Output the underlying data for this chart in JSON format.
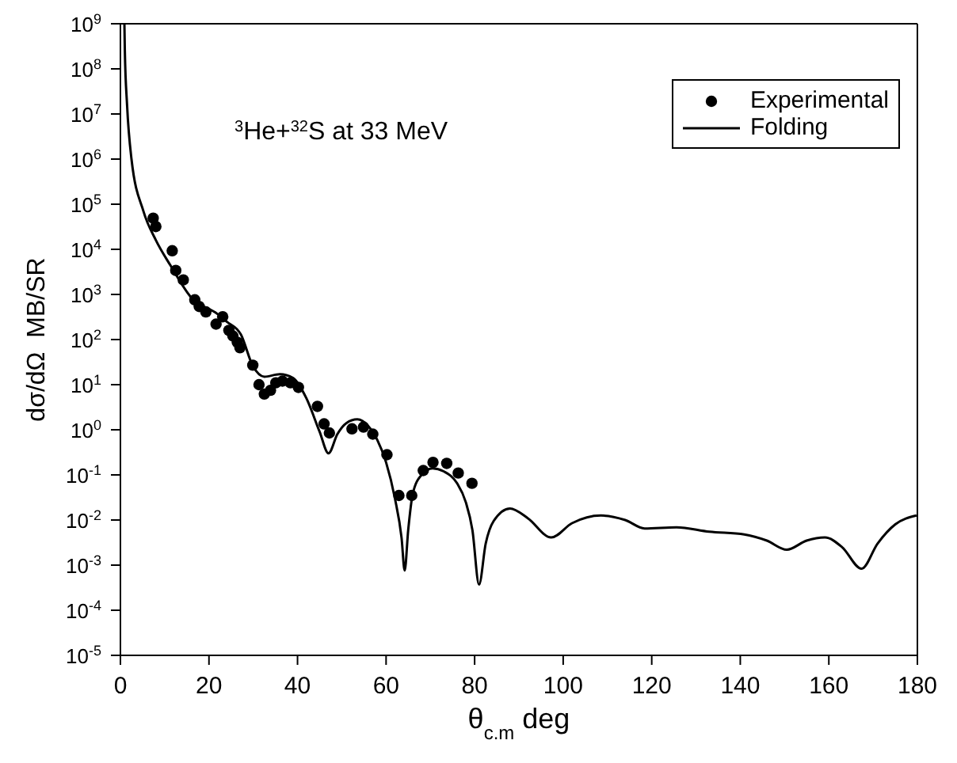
{
  "chart_data": {
    "type": "scatter",
    "xlabel": "θ$_{c.m}$ deg",
    "ylabel": "dσ/dΩ  MB/SR",
    "annotations": [
      "$^{3}$He+$^{32}$S at 33 MeV"
    ],
    "log": "y",
    "xlim": [
      0,
      180
    ],
    "xticks": [
      0,
      20,
      40,
      60,
      80,
      100,
      120,
      140,
      160,
      180
    ],
    "ylim": [
      1e-05,
      1000000000
    ],
    "yticks": [
      {
        "value": 1e-05,
        "label": "10$^{-5}$"
      },
      {
        "value": 0.0001,
        "label": "10$^{-4}$"
      },
      {
        "value": 0.001,
        "label": "10$^{-3}$"
      },
      {
        "value": 0.01,
        "label": "10$^{-2}$"
      },
      {
        "value": 0.1,
        "label": "10$^{-1}$"
      },
      {
        "value": 1,
        "label": "10$^{0}$"
      },
      {
        "value": 10,
        "label": "10$^{1}$"
      },
      {
        "value": 100,
        "label": "10$^{2}$"
      },
      {
        "value": 1000,
        "label": "10$^{3}$"
      },
      {
        "value": 10000,
        "label": "10$^{4}$"
      },
      {
        "value": 100000,
        "label": "10$^{5}$"
      },
      {
        "value": 1000000,
        "label": "10$^{6}$"
      },
      {
        "value": 10000000,
        "label": "10$^{7}$"
      },
      {
        "value": 100000000,
        "label": "10$^{8}$"
      },
      {
        "value": 1000000000,
        "label": "10$^{9}$"
      }
    ],
    "legend": "top right",
    "series": [
      {
        "name": "Experimental",
        "marker": "circle",
        "color": "#000000",
        "x": [
          7.4,
          8.0,
          11.7,
          12.5,
          14.2,
          16.8,
          17.8,
          19.3,
          21.6,
          23.1,
          24.5,
          25.4,
          26.4,
          27.0,
          29.9,
          31.3,
          32.5,
          33.9,
          35.1,
          36.6,
          38.4,
          40.2,
          44.5,
          46.0,
          47.2,
          52.3,
          54.9,
          57.0,
          60.2,
          62.9,
          65.8,
          68.4,
          70.6,
          73.7,
          76.3,
          79.4
        ],
        "values": [
          49000,
          32000,
          9300,
          3400,
          2100,
          760,
          540,
          410,
          220,
          320,
          160,
          120,
          87,
          66,
          27,
          10,
          6.2,
          7.5,
          11,
          12,
          11,
          8.7,
          3.3,
          1.35,
          0.85,
          1.05,
          1.15,
          0.8,
          0.28,
          0.035,
          0.035,
          0.125,
          0.19,
          0.18,
          0.11,
          0.065
        ]
      },
      {
        "name": "Folding",
        "type": "line",
        "marker": "none",
        "line_style": "solid",
        "color": "#000000",
        "x": [
          0.9,
          1.0,
          1.5,
          2.5,
          5.2,
          8,
          11.3,
          16,
          21.9,
          24,
          27.2,
          29.9,
          32.5,
          36,
          39,
          42,
          45,
          47,
          49,
          51,
          53.5,
          56,
          58,
          60,
          62,
          63.5,
          64.2,
          65,
          66,
          68,
          70.5,
          73,
          76,
          78,
          79.5,
          81,
          82.5,
          84.3,
          88,
          92,
          97.3,
          102,
          108.5,
          114,
          118.4,
          125.6,
          133,
          140.9,
          146,
          150.5,
          155,
          159.1,
          163,
          167.4,
          171,
          175,
          179.8
        ],
        "values": [
          1000000000,
          250000000,
          16000000,
          1000000,
          70000,
          16000,
          4400,
          850,
          370,
          250,
          130,
          26,
          15,
          17,
          14,
          5,
          0.9,
          0.3,
          0.8,
          1.4,
          1.7,
          1.2,
          0.6,
          0.19,
          0.03,
          0.004,
          0.00076,
          0.006,
          0.037,
          0.1,
          0.14,
          0.12,
          0.066,
          0.025,
          0.006,
          0.00037,
          0.003,
          0.0095,
          0.018,
          0.011,
          0.0041,
          0.0085,
          0.0126,
          0.01,
          0.0065,
          0.0069,
          0.0055,
          0.0048,
          0.0035,
          0.0022,
          0.0035,
          0.0041,
          0.0025,
          0.00083,
          0.003,
          0.008,
          0.0126
        ]
      }
    ]
  }
}
